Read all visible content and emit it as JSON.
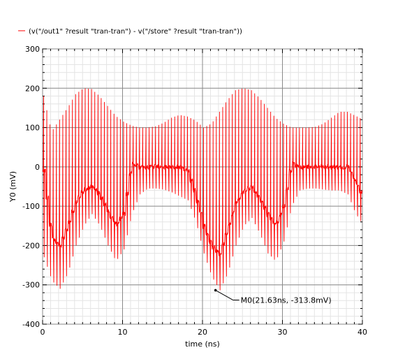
{
  "chart_data": {
    "type": "line",
    "title": "",
    "legend": {
      "placement": "top-left",
      "entries": [
        {
          "label": "(v(\"/out1\" ?result \"tran-tran\") - v(\"/store\" ?result \"tran-tran\"))",
          "color": "#ff0000"
        }
      ]
    },
    "xlabel": "time (ns)",
    "ylabel": "Y0 (mV)",
    "xlim": [
      0,
      40
    ],
    "ylim": [
      -400,
      300
    ],
    "x_ticks": [
      "0",
      "10",
      "20",
      "30",
      "40"
    ],
    "y_ticks": [
      "300",
      "200",
      "100",
      "0",
      "-100",
      "-200",
      "-300",
      "-400"
    ],
    "grid": true,
    "series": [
      {
        "name": "(v(\"/out1\" ?result \"tran-tran\") - v(\"/store\" ?result \"tran-tran\"))",
        "color": "#ff0000",
        "pulse_period_ns": 0.4,
        "upper_envelope": {
          "x": [
            0,
            1,
            2,
            3,
            4,
            5,
            6,
            7,
            8,
            9,
            10,
            11,
            12,
            13,
            14,
            15,
            16,
            17,
            18,
            19,
            20,
            21,
            22,
            23,
            24,
            25,
            26,
            27,
            28,
            29,
            30,
            31,
            32,
            33,
            34,
            35,
            36,
            37,
            38,
            39,
            40
          ],
          "y": [
            180,
            90,
            120,
            150,
            185,
            200,
            198,
            180,
            155,
            130,
            115,
            105,
            100,
            100,
            103,
            112,
            125,
            132,
            128,
            118,
            100,
            110,
            140,
            170,
            195,
            200,
            195,
            175,
            150,
            125,
            110,
            100,
            100,
            100,
            102,
            110,
            125,
            140,
            140,
            130,
            120
          ]
        },
        "lower_envelope": {
          "x": [
            0,
            1,
            2,
            3,
            4,
            5,
            6,
            7,
            8,
            9,
            10,
            11,
            12,
            13,
            14,
            15,
            16,
            17,
            18,
            19,
            20,
            21,
            22,
            23,
            24,
            25,
            26,
            27,
            28,
            29,
            30,
            31,
            32,
            33,
            34,
            35,
            36,
            37,
            38,
            39,
            40
          ],
          "y": [
            -230,
            -290,
            -310,
            -270,
            -200,
            -150,
            -120,
            -150,
            -200,
            -240,
            -210,
            -120,
            -70,
            -55,
            -55,
            -58,
            -65,
            -75,
            -85,
            -140,
            -220,
            -280,
            -313.8,
            -270,
            -200,
            -150,
            -130,
            -170,
            -220,
            -240,
            -190,
            -100,
            -60,
            -55,
            -55,
            -58,
            -60,
            -60,
            -70,
            -120,
            -150
          ]
        },
        "center_band": {
          "x": [
            0,
            1,
            2,
            3,
            4,
            5,
            6,
            7,
            8,
            9,
            10,
            11,
            12,
            13,
            14,
            15,
            16,
            17,
            18,
            19,
            20,
            21,
            22,
            23,
            24,
            25,
            26,
            27,
            28,
            29,
            30,
            31,
            32,
            33,
            34,
            35,
            36,
            37,
            38,
            39,
            40
          ],
          "y": [
            -10,
            -180,
            -200,
            -150,
            -90,
            -60,
            -50,
            -70,
            -110,
            -150,
            -120,
            10,
            0,
            0,
            0,
            0,
            0,
            0,
            -10,
            -70,
            -150,
            -200,
            -220,
            -160,
            -90,
            -60,
            -50,
            -80,
            -120,
            -150,
            -100,
            10,
            0,
            0,
            0,
            0,
            0,
            0,
            0,
            -40,
            -80
          ]
        }
      }
    ],
    "marker": {
      "name": "M0",
      "x": 21.63,
      "y": -313.8,
      "label": "M0(21.63ns, -313.8mV)"
    }
  }
}
